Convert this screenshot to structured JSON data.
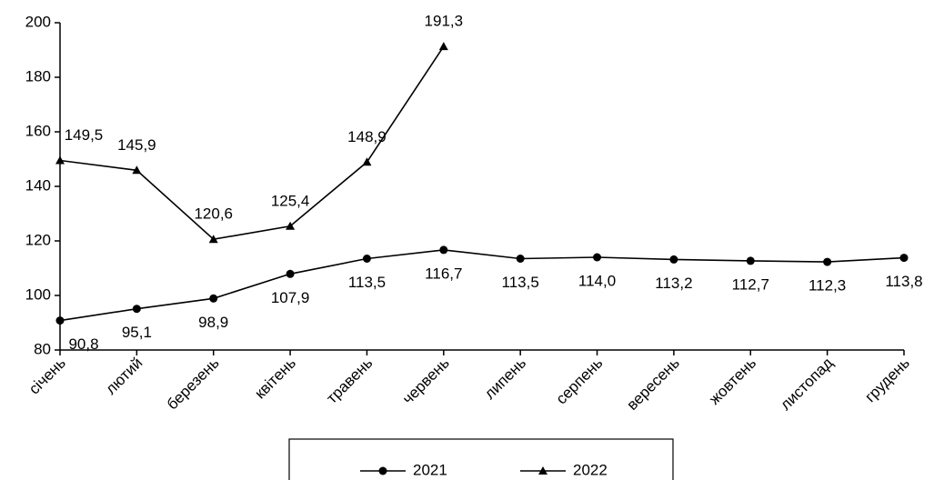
{
  "chart_data": {
    "type": "line",
    "categories": [
      "січень",
      "лютий",
      "березень",
      "квітень",
      "травень",
      "червень",
      "липень",
      "серпень",
      "вересень",
      "жовтень",
      "листопад",
      "грудень"
    ],
    "series": [
      {
        "name": "2021",
        "color": "#000000",
        "marker": "circle",
        "values": [
          90.8,
          95.1,
          98.9,
          107.9,
          113.5,
          116.7,
          113.5,
          114.0,
          113.2,
          112.7,
          112.3,
          113.8
        ],
        "value_labels": [
          "90,8",
          "95,1",
          "98,9",
          "107,9",
          "113,5",
          "116,7",
          "113,5",
          "114,0",
          "113,2",
          "112,7",
          "112,3",
          "113,8"
        ]
      },
      {
        "name": "2022",
        "color": "#000000",
        "marker": "triangle",
        "values": [
          149.5,
          145.9,
          120.6,
          125.4,
          148.9,
          191.3,
          null,
          null,
          null,
          null,
          null,
          null
        ],
        "value_labels": [
          "149,5",
          "145,9",
          "120,6",
          "125,4",
          "148,9",
          "191,3",
          null,
          null,
          null,
          null,
          null,
          null
        ]
      }
    ],
    "ylim": [
      80,
      200
    ],
    "yticks": [
      80,
      100,
      120,
      140,
      160,
      180,
      200
    ],
    "grid": false,
    "legend": "bottom"
  }
}
